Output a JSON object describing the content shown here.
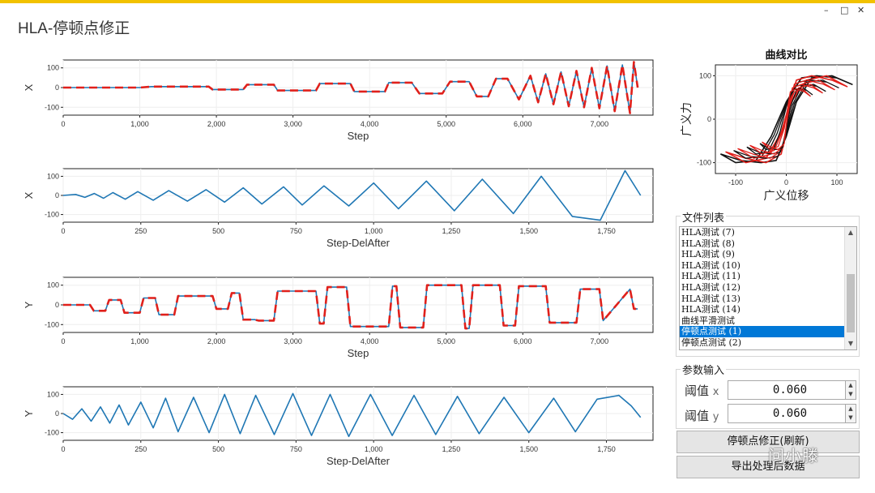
{
  "window": {
    "title": "HLA-停顿点修正",
    "controls": {
      "minimize": "–",
      "maximize": "□",
      "close": "✕"
    },
    "accent_color": "#f2c200"
  },
  "chart_data": [
    {
      "id": "x_step",
      "type": "line",
      "xlabel": "Step",
      "ylabel": "X",
      "x_ticks": [
        "0",
        "1,000",
        "2,000",
        "3,000",
        "4,000",
        "5,000",
        "6,000",
        "7,000"
      ],
      "y_ticks": [
        "100",
        "0",
        "-100"
      ],
      "xlim": [
        0,
        7700
      ],
      "ylim": [
        -140,
        140
      ],
      "series": [
        {
          "name": "curve",
          "color": "#1f77b4",
          "x": [
            0,
            1000,
            1150,
            1900,
            1950,
            2350,
            2400,
            2750,
            2800,
            3300,
            3350,
            3750,
            3800,
            4200,
            4250,
            4550,
            4650,
            4950,
            5050,
            5300,
            5400,
            5550,
            5650,
            5800,
            5950,
            6100,
            6200,
            6300,
            6400,
            6500,
            6600,
            6700,
            6800,
            6900,
            7000,
            7100,
            7200,
            7300,
            7400,
            7450,
            7500
          ],
          "y": [
            0,
            0,
            5,
            5,
            -10,
            -10,
            15,
            15,
            -15,
            -15,
            20,
            20,
            -20,
            -20,
            25,
            25,
            -30,
            -30,
            30,
            30,
            -45,
            -45,
            45,
            45,
            -60,
            60,
            -75,
            70,
            -85,
            80,
            -95,
            85,
            -100,
            100,
            -105,
            110,
            -120,
            115,
            -130,
            130,
            0
          ]
        },
        {
          "name": "stops",
          "color": "#e0201b",
          "x": [
            0,
            1000,
            1150,
            1900,
            1950,
            2350,
            2400,
            2750,
            2800,
            3300,
            3350,
            3750,
            3800,
            4200,
            4250,
            4550,
            4650,
            4950,
            5050,
            5300,
            5400,
            5550,
            5650,
            5800,
            5950,
            6100,
            6200,
            6300,
            6400,
            6500,
            6600,
            6700,
            6800,
            6900,
            7000,
            7100,
            7200,
            7300,
            7400,
            7450,
            7500
          ],
          "y": [
            0,
            0,
            5,
            5,
            -10,
            -10,
            15,
            15,
            -15,
            -15,
            20,
            20,
            -20,
            -20,
            25,
            25,
            -30,
            -30,
            30,
            30,
            -45,
            -45,
            45,
            45,
            -60,
            60,
            -75,
            70,
            -85,
            80,
            -95,
            85,
            -100,
            100,
            -105,
            110,
            -120,
            115,
            -130,
            130,
            0
          ]
        }
      ]
    },
    {
      "id": "x_delafter",
      "type": "line",
      "xlabel": "Step-DelAfter",
      "ylabel": "X",
      "x_ticks": [
        "0",
        "250",
        "500",
        "750",
        "1,000",
        "1,250",
        "1,500",
        "1,750"
      ],
      "y_ticks": [
        "100",
        "0",
        "-100"
      ],
      "xlim": [
        0,
        1900
      ],
      "ylim": [
        -140,
        140
      ],
      "series": [
        {
          "name": "curve",
          "color": "#1f77b4",
          "x": [
            0,
            40,
            70,
            100,
            130,
            160,
            200,
            240,
            290,
            340,
            400,
            460,
            520,
            580,
            640,
            710,
            770,
            840,
            920,
            1000,
            1080,
            1170,
            1260,
            1350,
            1450,
            1540,
            1640,
            1730,
            1810,
            1860
          ],
          "y": [
            0,
            5,
            -10,
            10,
            -15,
            15,
            -20,
            20,
            -25,
            25,
            -30,
            30,
            -35,
            40,
            -45,
            45,
            -50,
            50,
            -55,
            65,
            -70,
            75,
            -80,
            85,
            -95,
            100,
            -110,
            -130,
            130,
            0
          ]
        }
      ]
    },
    {
      "id": "y_step",
      "type": "line",
      "xlabel": "Step",
      "ylabel": "Y",
      "x_ticks": [
        "0",
        "1,000",
        "2,000",
        "3,000",
        "4,000",
        "5,000",
        "6,000",
        "7,000"
      ],
      "y_ticks": [
        "100",
        "0",
        "-100"
      ],
      "xlim": [
        0,
        7700
      ],
      "ylim": [
        -140,
        140
      ],
      "series": [
        {
          "name": "curve",
          "color": "#1f77b4",
          "x": [
            0,
            350,
            400,
            550,
            600,
            750,
            800,
            1000,
            1050,
            1200,
            1250,
            1450,
            1500,
            1950,
            2000,
            2150,
            2200,
            2300,
            2350,
            2500,
            2550,
            2750,
            2800,
            3300,
            3350,
            3400,
            3450,
            3700,
            3750,
            4250,
            4300,
            4350,
            4400,
            4700,
            4750,
            5200,
            5250,
            5300,
            5350,
            5700,
            5750,
            5900,
            5950,
            6300,
            6350,
            6700,
            6750,
            7000,
            7050,
            7400,
            7450,
            7500
          ],
          "y": [
            0,
            0,
            -30,
            -30,
            25,
            25,
            -40,
            -40,
            35,
            35,
            -50,
            -50,
            45,
            45,
            -20,
            -20,
            60,
            60,
            -75,
            -75,
            -80,
            -80,
            70,
            70,
            -95,
            -95,
            90,
            90,
            -110,
            -110,
            95,
            95,
            -115,
            -115,
            100,
            100,
            -120,
            -120,
            100,
            100,
            -105,
            -105,
            95,
            95,
            -90,
            -90,
            80,
            80,
            -80,
            80,
            -20,
            -20
          ]
        },
        {
          "name": "stops",
          "color": "#e0201b",
          "x": [
            0,
            350,
            400,
            550,
            600,
            750,
            800,
            1000,
            1050,
            1200,
            1250,
            1450,
            1500,
            1950,
            2000,
            2150,
            2200,
            2300,
            2350,
            2500,
            2550,
            2750,
            2800,
            3300,
            3350,
            3400,
            3450,
            3700,
            3750,
            4250,
            4300,
            4350,
            4400,
            4700,
            4750,
            5200,
            5250,
            5300,
            5350,
            5700,
            5750,
            5900,
            5950,
            6300,
            6350,
            6700,
            6750,
            7000,
            7050,
            7400,
            7450,
            7500
          ],
          "y": [
            0,
            0,
            -30,
            -30,
            25,
            25,
            -40,
            -40,
            35,
            35,
            -50,
            -50,
            45,
            45,
            -20,
            -20,
            60,
            60,
            -75,
            -75,
            -80,
            -80,
            70,
            70,
            -95,
            -95,
            90,
            90,
            -110,
            -110,
            95,
            95,
            -115,
            -115,
            100,
            100,
            -120,
            -120,
            100,
            100,
            -105,
            -105,
            95,
            95,
            -90,
            -90,
            80,
            80,
            -80,
            80,
            -20,
            -20
          ]
        }
      ]
    },
    {
      "id": "y_delafter",
      "type": "line",
      "xlabel": "Step-DelAfter",
      "ylabel": "Y",
      "x_ticks": [
        "0",
        "250",
        "500",
        "750",
        "1,000",
        "1,250",
        "1,500",
        "1,750"
      ],
      "y_ticks": [
        "100",
        "0",
        "-100"
      ],
      "xlim": [
        0,
        1900
      ],
      "ylim": [
        -140,
        140
      ],
      "series": [
        {
          "name": "curve",
          "color": "#1f77b4",
          "x": [
            0,
            30,
            60,
            90,
            120,
            150,
            180,
            210,
            250,
            290,
            330,
            370,
            420,
            470,
            520,
            570,
            620,
            680,
            740,
            800,
            860,
            920,
            990,
            1060,
            1130,
            1200,
            1270,
            1340,
            1420,
            1500,
            1580,
            1650,
            1720,
            1790,
            1830,
            1860
          ],
          "y": [
            0,
            -30,
            25,
            -40,
            35,
            -50,
            45,
            -60,
            60,
            -75,
            80,
            -95,
            85,
            -100,
            100,
            -105,
            95,
            -110,
            105,
            -115,
            100,
            -120,
            100,
            -115,
            95,
            -110,
            90,
            -105,
            85,
            -100,
            80,
            -95,
            75,
            95,
            40,
            -20
          ]
        }
      ]
    },
    {
      "id": "hysteresis",
      "type": "line",
      "title": "曲线对比",
      "xlabel": "广义位移",
      "ylabel": "广义力",
      "x_ticks": [
        "-100",
        "0",
        "100"
      ],
      "y_ticks": [
        "100",
        "0",
        "-100"
      ],
      "xlim": [
        -140,
        140
      ],
      "ylim": [
        -125,
        125
      ],
      "series": [
        {
          "name": "reference",
          "color": "#111111",
          "x": [
            -130,
            -90,
            -50,
            -20,
            0,
            20,
            50,
            90,
            130,
            100,
            60,
            30,
            0,
            -30,
            -60,
            -100,
            -130
          ],
          "y": [
            -80,
            -95,
            -100,
            -95,
            -40,
            40,
            95,
            100,
            80,
            95,
            100,
            95,
            40,
            -40,
            -95,
            -100,
            -80
          ]
        },
        {
          "name": "corrected",
          "color": "#e0201b",
          "x": [
            -120,
            -80,
            -40,
            -10,
            10,
            40,
            80,
            120,
            90,
            50,
            20,
            -10,
            -40,
            -80,
            -120
          ],
          "y": [
            -75,
            -90,
            -100,
            -80,
            40,
            90,
            100,
            75,
            90,
            100,
            90,
            -30,
            -90,
            -100,
            -75
          ]
        }
      ]
    }
  ],
  "file_list": {
    "label": "文件列表",
    "items": [
      "HLA测试 (7)",
      "HLA测试 (8)",
      "HLA测试 (9)",
      "HLA测试 (10)",
      "HLA测试 (11)",
      "HLA测试 (12)",
      "HLA测试 (13)",
      "HLA测试 (14)",
      "曲线平滑测试",
      "停顿点测试 (1)",
      "停顿点测试 (2)"
    ],
    "selected_index": 9
  },
  "params": {
    "label": "参数输入",
    "threshold_x_label": "阈值",
    "threshold_x_axis": "x",
    "threshold_x_value": "0.060",
    "threshold_y_label": "阈值",
    "threshold_y_axis": "y",
    "threshold_y_value": "0.060"
  },
  "buttons": {
    "fix_label": "停顿点修正(刷新)",
    "export_label": "导出处理后数据"
  },
  "watermark": "问小滕"
}
